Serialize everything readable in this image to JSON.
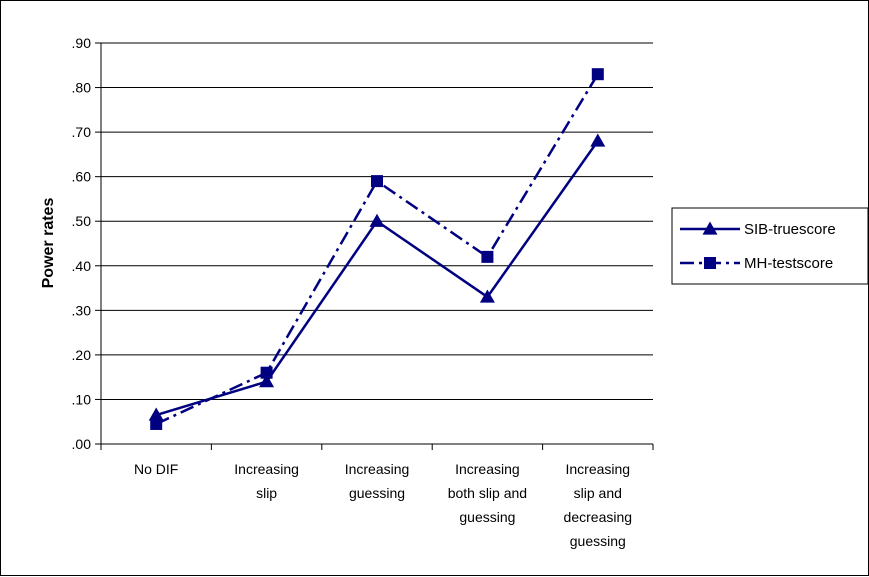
{
  "chart_data": {
    "type": "line",
    "title": "",
    "xlabel": "",
    "ylabel": "Power rates",
    "ylim": [
      0,
      0.9
    ],
    "yticks": [
      ".00",
      ".10",
      ".20",
      ".30",
      ".40",
      ".50",
      ".60",
      ".70",
      ".80",
      ".90"
    ],
    "grid": true,
    "legend_position": "right",
    "categories": [
      [
        "No DIF"
      ],
      [
        "Increasing",
        "slip"
      ],
      [
        "Increasing",
        "guessing"
      ],
      [
        "Increasing",
        "both slip and",
        "guessing"
      ],
      [
        "Increasing",
        "slip and",
        "decreasing",
        "guessing"
      ]
    ],
    "series": [
      {
        "name": "SIB-truescore",
        "values": [
          0.065,
          0.14,
          0.5,
          0.33,
          0.68
        ],
        "line": "solid",
        "marker": "triangle",
        "color": "#000080"
      },
      {
        "name": "MH-testscore",
        "values": [
          0.045,
          0.16,
          0.59,
          0.42,
          0.83
        ],
        "line": "dashdot",
        "marker": "square",
        "color": "#000080"
      }
    ]
  }
}
